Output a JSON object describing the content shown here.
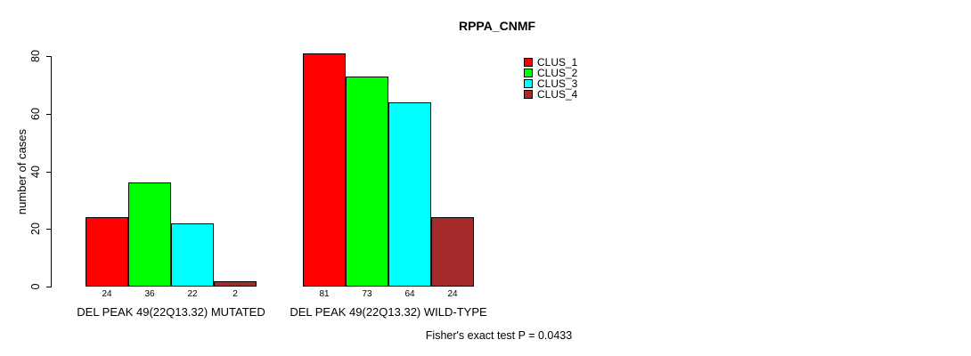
{
  "chart_data": {
    "type": "bar",
    "title": "RPPA_CNMF",
    "xlabel": "",
    "ylabel": "number of cases",
    "ylim": [
      0,
      80
    ],
    "yticks": [
      0,
      20,
      40,
      60,
      80
    ],
    "grid": false,
    "legend_position": "top-right",
    "bar_borders_color": "#000000",
    "background_color": "#ffffff",
    "categories": [
      "DEL PEAK 49(22Q13.32) MUTATED",
      "DEL PEAK 49(22Q13.32) WILD-TYPE"
    ],
    "series": [
      {
        "name": "CLUS_1",
        "color": "#ff0000",
        "values": [
          24,
          81
        ]
      },
      {
        "name": "CLUS_2",
        "color": "#00ff00",
        "values": [
          36,
          73
        ]
      },
      {
        "name": "CLUS_3",
        "color": "#00ffff",
        "values": [
          22,
          64
        ]
      },
      {
        "name": "CLUS_4",
        "color": "#a52a2a",
        "values": [
          2,
          24
        ]
      }
    ],
    "bar_value_labels": [
      [
        "24",
        "36",
        "22",
        "2"
      ],
      [
        "81",
        "73",
        "64",
        "24"
      ]
    ],
    "footer": "Fisher's exact test P = 0.0433"
  }
}
